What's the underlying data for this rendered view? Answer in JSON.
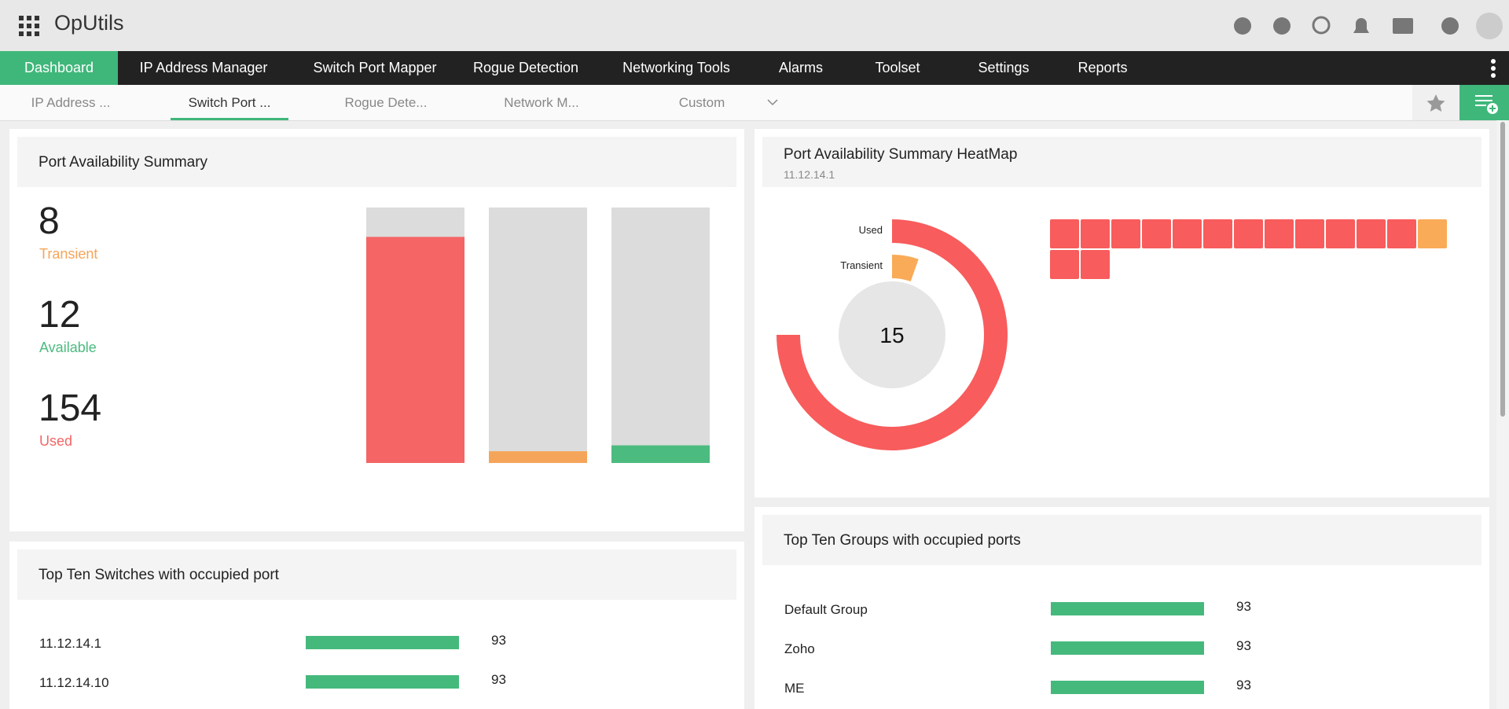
{
  "app_name": "OpUtils",
  "nav": {
    "items": [
      "Dashboard",
      "IP Address Manager",
      "Switch Port Mapper",
      "Rogue Detection",
      "Networking Tools",
      "Alarms",
      "Toolset",
      "Settings",
      "Reports"
    ],
    "active": 0,
    "active_color": "#3fb77a"
  },
  "tabs": {
    "items": [
      "IP Address ...",
      "Switch Port ...",
      "Rogue Dete...",
      "Network M...",
      "Custom"
    ],
    "active": 1
  },
  "summary": {
    "title": "Port Availability Summary",
    "stats": [
      {
        "value": 8,
        "label": "Transient",
        "color": "#f5a55a"
      },
      {
        "value": 12,
        "label": "Available",
        "color": "#4cbb7f"
      },
      {
        "value": 154,
        "label": "Used",
        "color": "#f56565"
      }
    ]
  },
  "heatmap": {
    "title": "Port Availability Summary HeatMap",
    "subtitle": "11.12.14.1",
    "total": 15,
    "segments": [
      {
        "label": "Used",
        "value": 14,
        "color": "#f85c5c"
      },
      {
        "label": "Transient",
        "value": 1,
        "color": "#f9ab58"
      }
    ],
    "cells": [
      0,
      0,
      0,
      0,
      0,
      0,
      0,
      0,
      0,
      0,
      0,
      0,
      1,
      0,
      0
    ]
  },
  "switches": {
    "title": "Top Ten Switches with occupied port",
    "color": "#45b97c",
    "rows": [
      {
        "name": "11.12.14.1",
        "value": 93
      },
      {
        "name": "11.12.14.10",
        "value": 93
      }
    ]
  },
  "groups": {
    "title": "Top Ten Groups with occupied ports",
    "color": "#45b97c",
    "rows": [
      {
        "name": "Default Group",
        "value": 93
      },
      {
        "name": "Zoho",
        "value": 93
      },
      {
        "name": "ME",
        "value": 93
      }
    ]
  }
}
